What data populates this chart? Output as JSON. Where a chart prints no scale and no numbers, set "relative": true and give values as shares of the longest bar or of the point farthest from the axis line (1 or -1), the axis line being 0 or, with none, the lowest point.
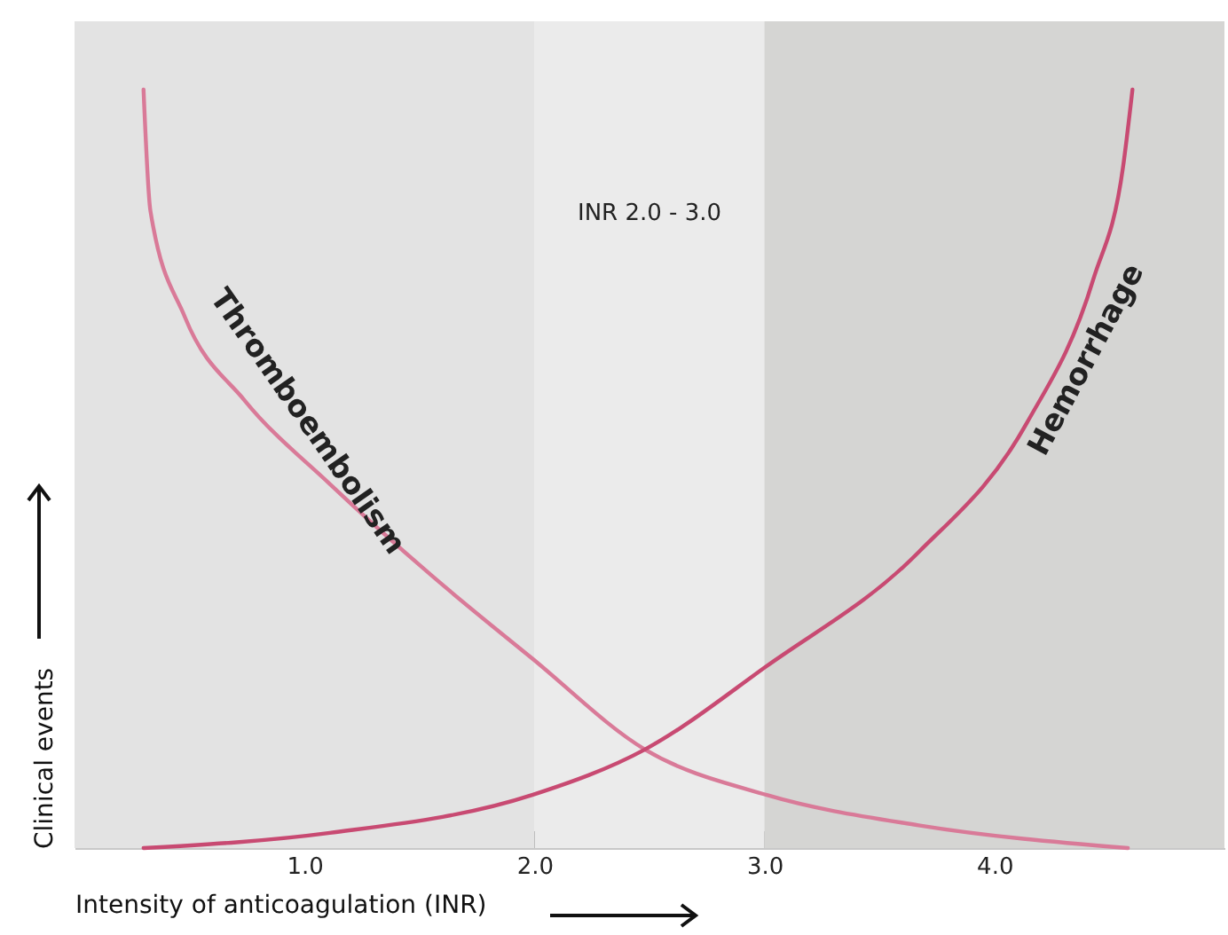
{
  "chart_data": {
    "type": "line",
    "relative": true,
    "xlabel": "Intensity of anticoagulation (INR)",
    "ylabel": "Clinical events",
    "xlim": [
      0,
      5
    ],
    "xticks": [
      {
        "value": 1,
        "label": "1.0"
      },
      {
        "value": 2,
        "label": "2.0"
      },
      {
        "value": 3,
        "label": "3.0"
      },
      {
        "value": 4,
        "label": "4.0"
      }
    ],
    "bands": [
      {
        "axis": "x",
        "from": 0,
        "to": 2,
        "color": "#e3e3e3",
        "label": null
      },
      {
        "axis": "x",
        "from": 2,
        "to": 3,
        "color": "#ebebeb",
        "label": "INR 2.0 - 3.0"
      },
      {
        "axis": "x",
        "from": 3,
        "to": 5,
        "color": "#d5d5d3",
        "label": null
      }
    ],
    "series": [
      {
        "name": "Thromboembolism",
        "color": "#d97a98",
        "x": [
          0.3,
          0.33,
          0.48,
          0.74,
          1.11,
          1.55,
          1.99,
          2.48,
          3.01,
          3.67,
          4.58
        ],
        "values": [
          1,
          0.84,
          0.7,
          0.59,
          0.48,
          0.36,
          0.25,
          0.13,
          0.07,
          0.03,
          0
        ]
      },
      {
        "name": "Hemorrhage",
        "color": "#c84a72",
        "x": [
          0.3,
          1.11,
          1.99,
          2.48,
          3.01,
          3.67,
          4.14,
          4.43,
          4.56,
          4.6
        ],
        "values": [
          0,
          0.02,
          0.07,
          0.13,
          0.24,
          0.39,
          0.56,
          0.75,
          0.9,
          1
        ]
      }
    ],
    "marker": "none",
    "line_style": "solid"
  }
}
